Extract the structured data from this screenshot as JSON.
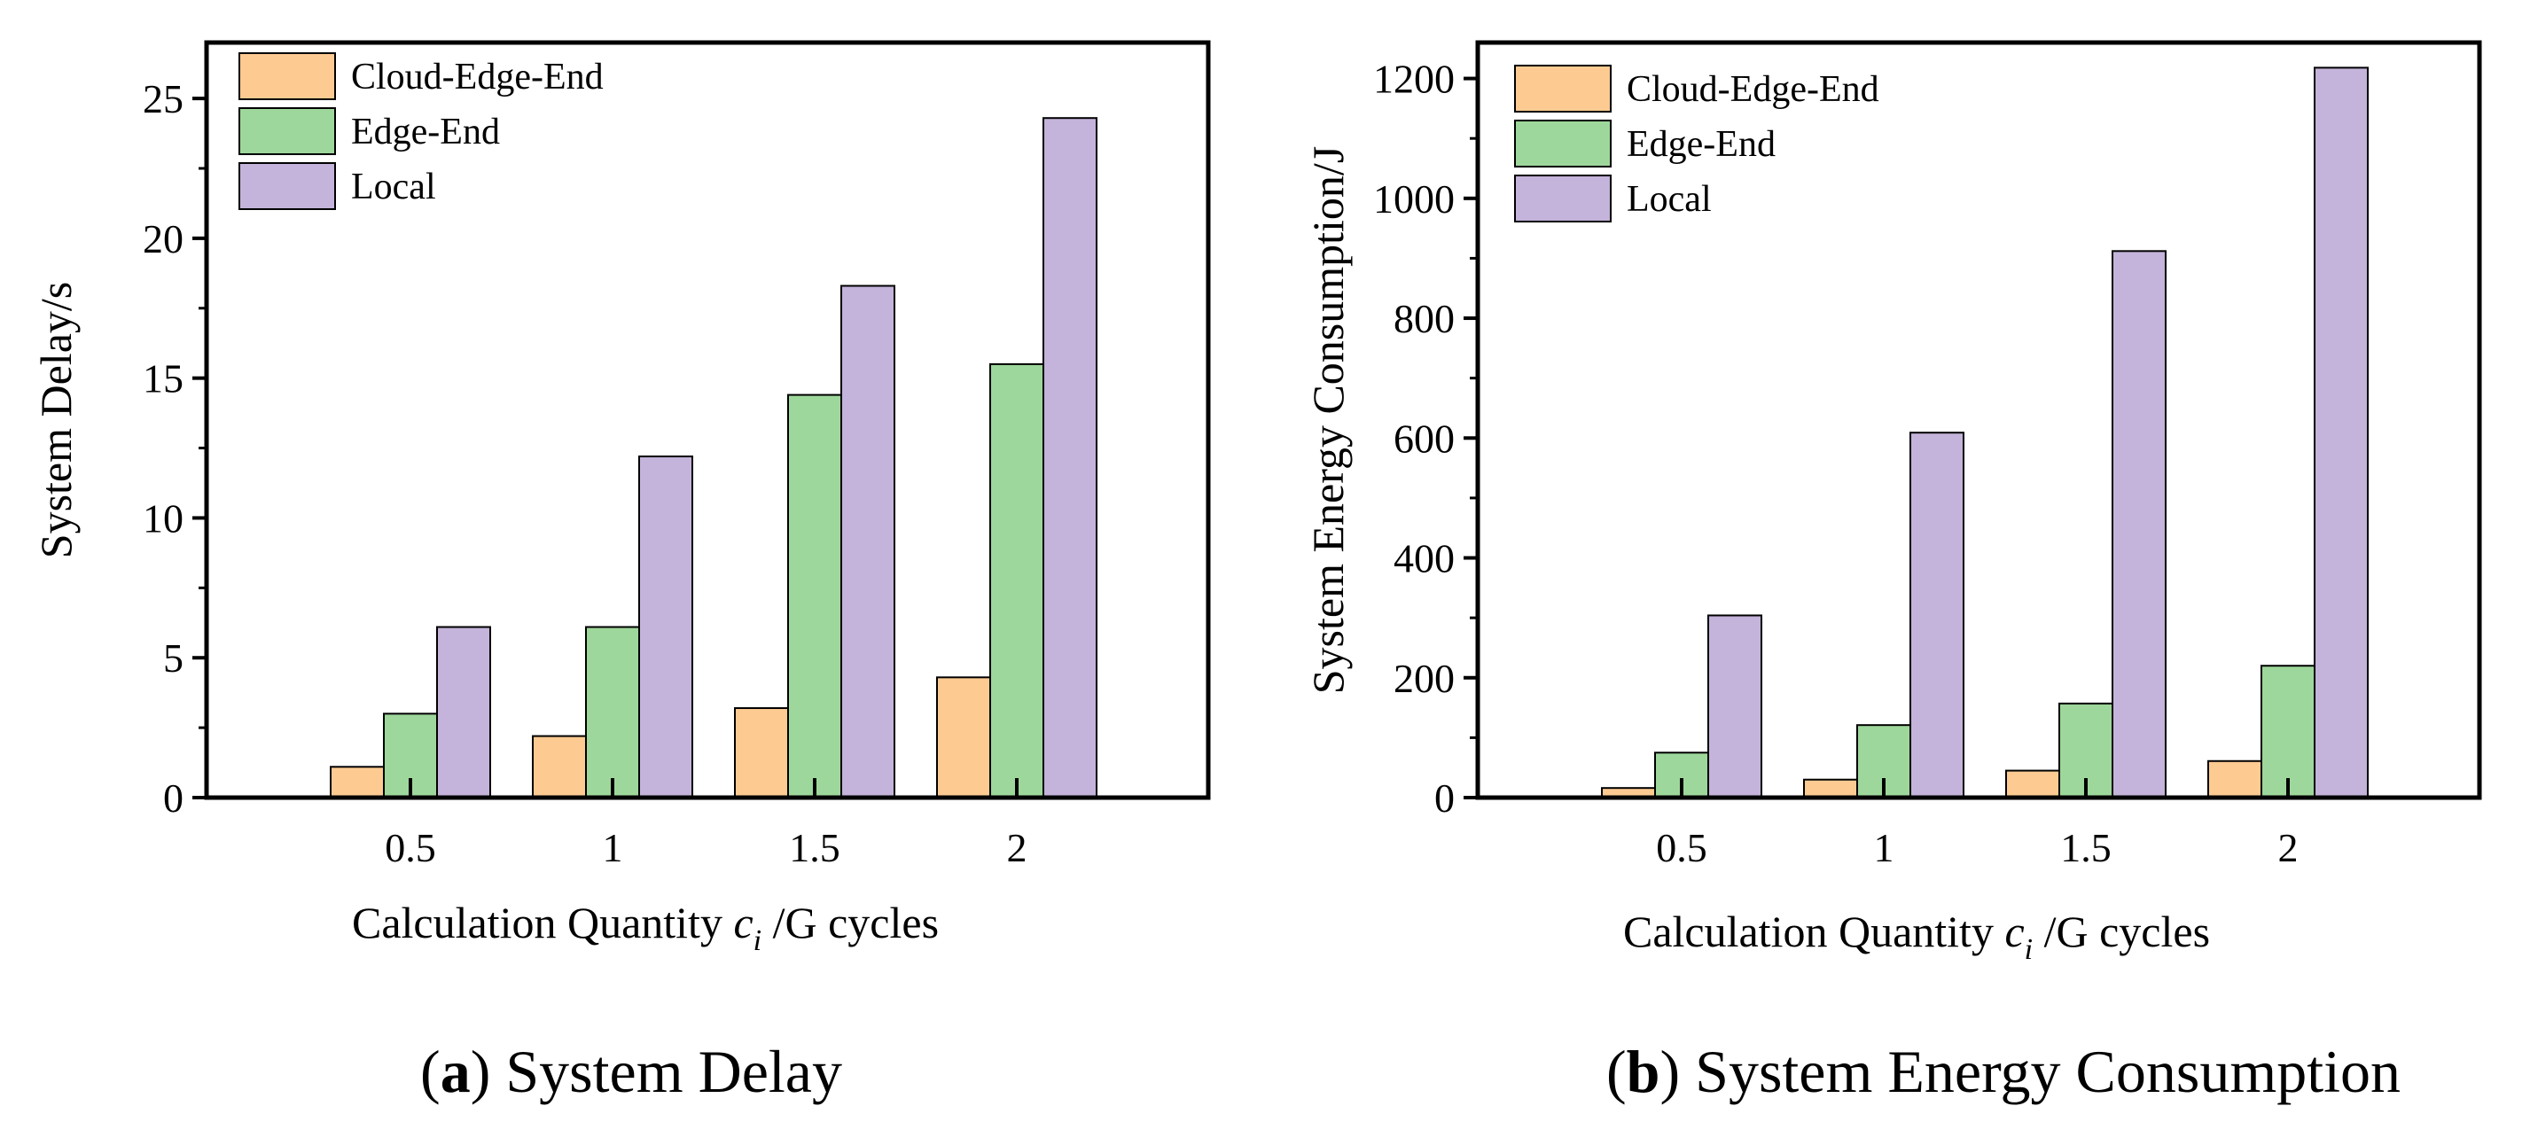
{
  "chart_data": [
    {
      "type": "bar",
      "title": "",
      "categories": [
        "0.5",
        "1",
        "1.5",
        "2"
      ],
      "series": [
        {
          "name": "Cloud-Edge-End",
          "values": [
            1.1,
            2.2,
            3.2,
            4.3
          ]
        },
        {
          "name": "Edge-End",
          "values": [
            3.0,
            6.1,
            14.4,
            15.5
          ]
        },
        {
          "name": "Local",
          "values": [
            6.1,
            12.2,
            18.3,
            24.3
          ]
        }
      ],
      "xlabel": {
        "main": "Calculation Quantity",
        "var": "c",
        "sub": "i",
        "unit": "/G cycles"
      },
      "ylabel": "System Delay/s",
      "ylim": [
        0,
        27
      ],
      "yticks": [
        0,
        5,
        10,
        15,
        20,
        25
      ],
      "caption": {
        "letter": "a",
        "text": "System Delay"
      }
    },
    {
      "type": "bar",
      "title": "",
      "categories": [
        "0.5",
        "1",
        "1.5",
        "2"
      ],
      "series": [
        {
          "name": "Cloud-Edge-End",
          "values": [
            16,
            30,
            45,
            61
          ]
        },
        {
          "name": "Edge-End",
          "values": [
            75,
            121,
            157,
            220
          ]
        },
        {
          "name": "Local",
          "values": [
            304,
            609,
            912,
            1218
          ]
        }
      ],
      "xlabel": {
        "main": "Calculation Quantity",
        "var": "c",
        "sub": "i",
        "unit": "/G cycles"
      },
      "ylabel": "System Energy Consumption/J",
      "ylim": [
        0,
        1260
      ],
      "yticks": [
        0,
        200,
        400,
        600,
        800,
        1000,
        1200
      ],
      "caption": {
        "letter": "b",
        "text": "System Energy Consumption"
      }
    }
  ],
  "colors": {
    "Cloud-Edge-End": "#fdcb92",
    "Edge-End": "#9ed79b",
    "Local": "#c4b3da"
  }
}
